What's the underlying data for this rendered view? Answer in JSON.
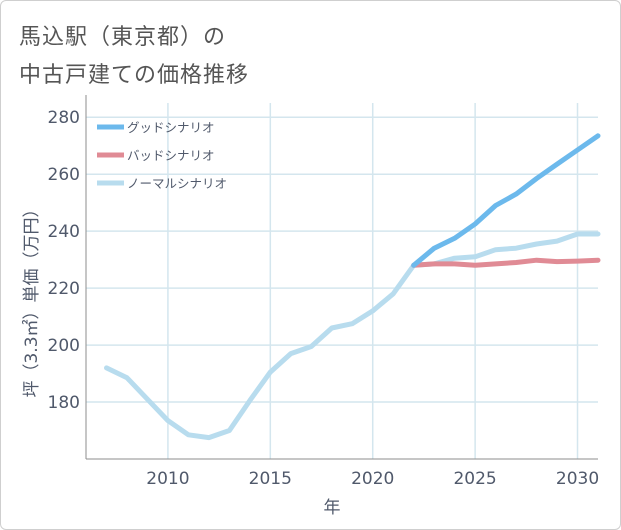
{
  "title_lines": [
    "馬込駅（東京都）の",
    "中古戸建ての価格推移"
  ],
  "chart_data": {
    "type": "line",
    "title": "馬込駅（東京都）の中古戸建ての価格推移",
    "xlabel": "年",
    "ylabel": "坪（3.3㎡）単価（万円）",
    "xlim": [
      2006,
      2031
    ],
    "ylim": [
      160,
      285
    ],
    "x_ticks": [
      2010,
      2015,
      2020,
      2025,
      2030
    ],
    "y_ticks": [
      180,
      200,
      220,
      240,
      260,
      280
    ],
    "grid": true,
    "legend_position": "top-left",
    "series": [
      {
        "name": "グッドシナリオ",
        "color": "#6cb9ec",
        "x": [
          2022,
          2023,
          2024,
          2025,
          2026,
          2027,
          2028,
          2029,
          2030,
          2031
        ],
        "y": [
          228,
          234,
          237.5,
          242.5,
          249,
          253,
          258.5,
          263.5,
          268.5,
          273.5
        ]
      },
      {
        "name": "バッドシナリオ",
        "color": "#e08b95",
        "x": [
          2022,
          2023,
          2024,
          2025,
          2026,
          2027,
          2028,
          2029,
          2030,
          2031
        ],
        "y": [
          228,
          228.5,
          228.5,
          228,
          228.5,
          229,
          229.8,
          229.3,
          229.5,
          229.8
        ]
      },
      {
        "name": "ノーマルシナリオ",
        "color": "#b8dcee",
        "x": [
          2007,
          2008,
          2009,
          2010,
          2011,
          2012,
          2013,
          2014,
          2015,
          2016,
          2017,
          2018,
          2019,
          2020,
          2021,
          2022,
          2023,
          2024,
          2025,
          2026,
          2027,
          2028,
          2029,
          2030,
          2031
        ],
        "y": [
          192,
          188.5,
          181,
          173.5,
          168.5,
          167.5,
          170,
          180.5,
          190.5,
          197,
          199.5,
          206,
          207.5,
          212,
          218,
          228,
          228.5,
          230.5,
          231,
          233.5,
          234,
          235.5,
          236.5,
          239,
          239
        ]
      }
    ]
  }
}
